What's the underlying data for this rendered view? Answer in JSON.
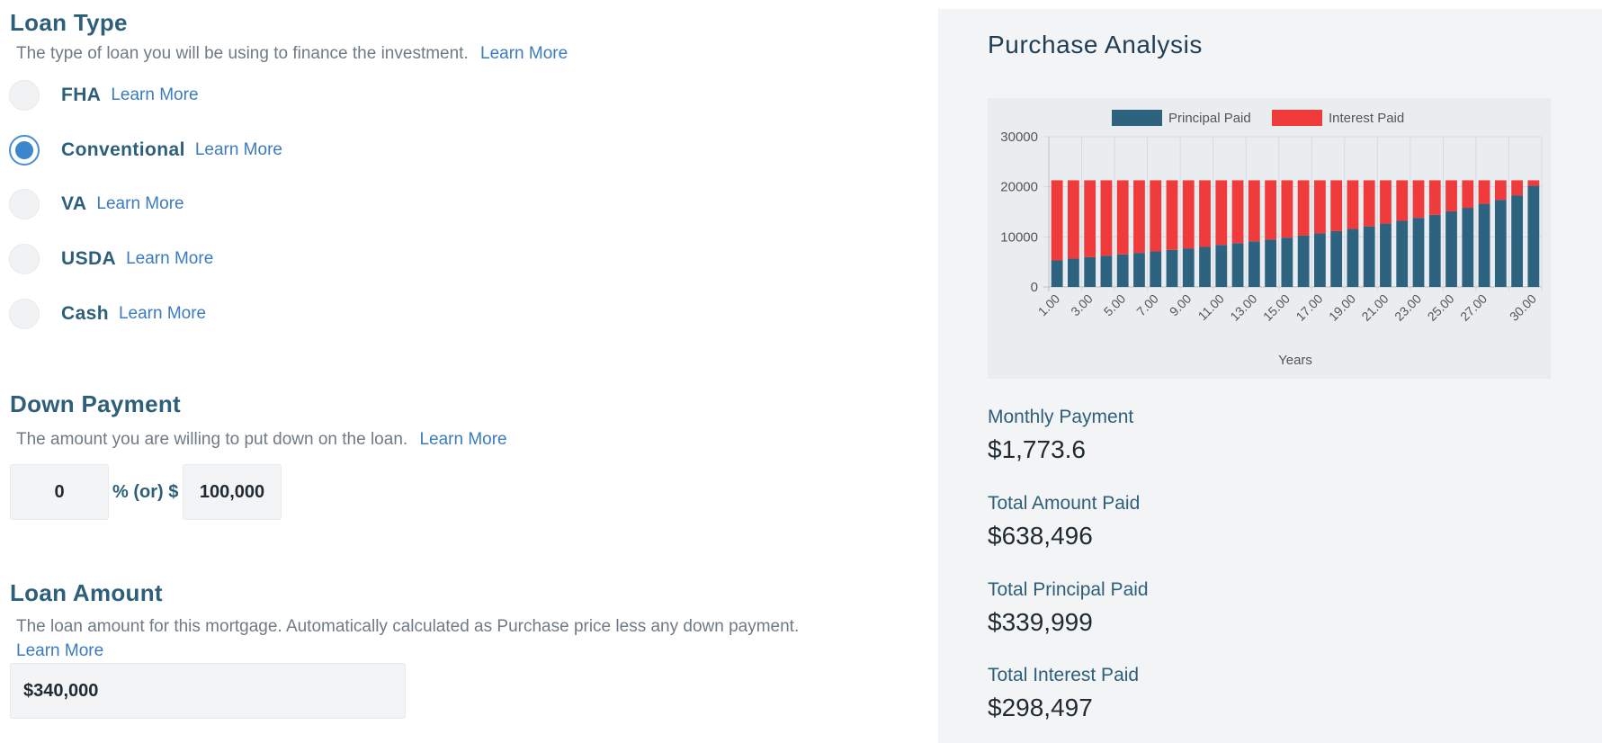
{
  "loan_type": {
    "title": "Loan Type",
    "description": "The type of loan you will be using to finance the investment.",
    "learn_more": "Learn More",
    "options": [
      {
        "label": "FHA",
        "link": "Learn More",
        "selected": false
      },
      {
        "label": "Conventional",
        "link": "Learn More",
        "selected": true
      },
      {
        "label": "VA",
        "link": "Learn More",
        "selected": false
      },
      {
        "label": "USDA",
        "link": "Learn More",
        "selected": false
      },
      {
        "label": "Cash",
        "link": "Learn More",
        "selected": false
      }
    ]
  },
  "down_payment": {
    "title": "Down Payment",
    "description": "The amount you are willing to put down on the loan.",
    "learn_more": "Learn More",
    "percent_value": "0",
    "separator": "% (or) $",
    "dollar_value": "100,000"
  },
  "loan_amount": {
    "title": "Loan Amount",
    "description": "The loan amount for this mortgage. Automatically calculated as Purchase price less any down payment.",
    "learn_more": "Learn More",
    "value": "$340,000"
  },
  "purchase_analysis": {
    "title": "Purchase Analysis",
    "stats": [
      {
        "label": "Monthly Payment",
        "value": "$1,773.6"
      },
      {
        "label": "Total Amount Paid",
        "value": "$638,496"
      },
      {
        "label": "Total Principal Paid",
        "value": "$339,999"
      },
      {
        "label": "Total Interest Paid",
        "value": "$298,497"
      }
    ]
  },
  "colors": {
    "principal": "#2e6380",
    "interest": "#ef3b3b",
    "accent": "#3b86cc",
    "heading": "#2e5f7a"
  },
  "chart_data": {
    "type": "bar",
    "stacked": true,
    "xlabel": "Years",
    "ylabel": "",
    "ylim": [
      0,
      30000
    ],
    "yticks": [
      0,
      10000,
      20000,
      30000
    ],
    "grid": true,
    "legend_position": "top",
    "categories": [
      "1.00",
      "2.00",
      "3.00",
      "4.00",
      "5.00",
      "6.00",
      "7.00",
      "8.00",
      "9.00",
      "10.00",
      "11.00",
      "12.00",
      "13.00",
      "14.00",
      "15.00",
      "16.00",
      "17.00",
      "18.00",
      "19.00",
      "20.00",
      "21.00",
      "22.00",
      "23.00",
      "24.00",
      "25.00",
      "26.00",
      "27.00",
      "28.00",
      "29.00",
      "30.00"
    ],
    "tick_labels": [
      "1.00",
      "3.00",
      "5.00",
      "7.00",
      "9.00",
      "11.00",
      "13.00",
      "15.00",
      "17.00",
      "19.00",
      "21.00",
      "23.00",
      "25.00",
      "27.00",
      "30.00"
    ],
    "series": [
      {
        "name": "Principal Paid",
        "color": "#2e6380",
        "values": [
          5300,
          5650,
          5950,
          6250,
          6500,
          6800,
          7100,
          7400,
          7700,
          8000,
          8400,
          8750,
          9100,
          9450,
          9850,
          10250,
          10700,
          11150,
          11600,
          12100,
          12650,
          13200,
          13800,
          14400,
          15100,
          15800,
          16600,
          17400,
          18300,
          20200
        ]
      },
      {
        "name": "Interest Paid",
        "color": "#ef3b3b",
        "values": [
          16000,
          15650,
          15350,
          15050,
          14800,
          14500,
          14200,
          13900,
          13600,
          13300,
          12900,
          12550,
          12200,
          11850,
          11450,
          11050,
          10600,
          10150,
          9700,
          9200,
          8650,
          8100,
          7500,
          6900,
          6200,
          5500,
          4700,
          3900,
          3000,
          1100
        ]
      }
    ]
  }
}
